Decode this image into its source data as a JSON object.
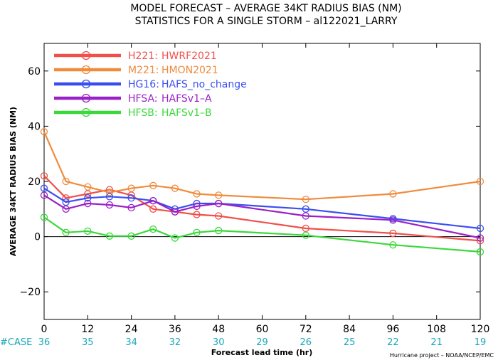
{
  "chart_data": {
    "type": "line",
    "title_line1": "MODEL FORECAST – AVERAGE 34KT RADIUS BIAS (NM)",
    "title_line2": "STATISTICS FOR A SINGLE STORM – al122021_LARRY",
    "xlabel": "Forecast lead time (hr)",
    "ylabel": "AVERAGE 34KT RADIUS BIAS (NM)",
    "xlim": [
      0,
      120
    ],
    "ylim": [
      -30,
      70
    ],
    "xticks": [
      "0",
      "12",
      "24",
      "36",
      "48",
      "60",
      "72",
      "84",
      "96",
      "108",
      "120"
    ],
    "xtick_values": [
      0,
      12,
      24,
      36,
      48,
      60,
      72,
      84,
      96,
      108,
      120
    ],
    "yticks": [
      "−20",
      "0",
      "20",
      "40",
      "60"
    ],
    "ytick_values": [
      -20,
      0,
      20,
      40,
      60
    ],
    "zero_line": true,
    "grid": false,
    "legend_position": "top-left",
    "series": [
      {
        "code": "H221:",
        "name": "HWRF2021",
        "color": "#f0504a",
        "x": [
          0,
          6,
          12,
          18,
          24,
          30,
          36,
          42,
          48,
          72,
          96,
          120
        ],
        "y": [
          22,
          14,
          15.5,
          17,
          15,
          10,
          9,
          8,
          7.5,
          3,
          1.2,
          -1.5
        ]
      },
      {
        "code": "M221:",
        "name": "HMON2021",
        "color": "#f08b3c",
        "x": [
          0,
          6,
          12,
          18,
          24,
          30,
          36,
          42,
          48,
          72,
          96,
          120
        ],
        "y": [
          38,
          20,
          18,
          16,
          17.5,
          18.5,
          17.5,
          15.5,
          15,
          13.5,
          15.5,
          20
        ]
      },
      {
        "code": "HG16:",
        "name": "HAFS_no_change",
        "color": "#3a4ef0",
        "x": [
          0,
          6,
          12,
          18,
          24,
          30,
          36,
          42,
          48,
          72,
          96,
          120
        ],
        "y": [
          17.5,
          12.5,
          14,
          14.5,
          14,
          13,
          10,
          12,
          12,
          10,
          6.5,
          3
        ]
      },
      {
        "code": "HFSA:",
        "name": "HAFSv1–A",
        "color": "#9a20c8",
        "x": [
          0,
          6,
          12,
          18,
          24,
          30,
          36,
          42,
          48,
          72,
          96,
          120
        ],
        "y": [
          15,
          10,
          12,
          11.5,
          10.5,
          13,
          9,
          11,
          12,
          7.5,
          6,
          -0.5
        ]
      },
      {
        "code": "HFSB:",
        "name": "HAFSv1–B",
        "color": "#3ad83a",
        "x": [
          0,
          6,
          12,
          18,
          24,
          30,
          36,
          42,
          48,
          72,
          96,
          120
        ],
        "y": [
          7,
          1.5,
          2,
          0.2,
          0.2,
          2.7,
          -0.5,
          1.5,
          2.2,
          0.5,
          -3,
          -5.5
        ]
      }
    ],
    "case_label": "#CASE",
    "cases": [
      "36",
      "35",
      "34",
      "32",
      "30",
      "29",
      "26",
      "25",
      "22",
      "21",
      "19"
    ],
    "credit": "Hurricane project – NOAA/NCEP/EMC"
  }
}
